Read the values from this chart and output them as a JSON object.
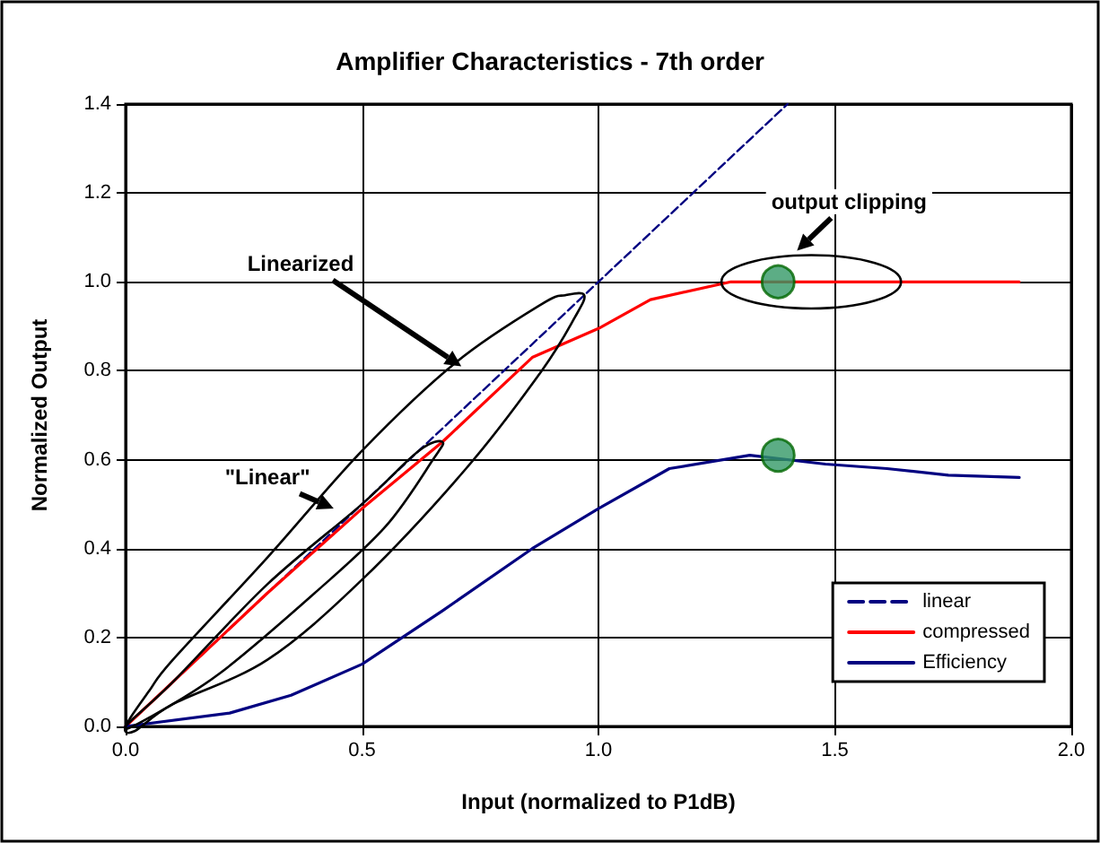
{
  "chart_data": {
    "type": "line",
    "title": "Amplifier Characteristics - 7th order",
    "xlabel": "Input (normalized to P1dB)",
    "ylabel": "Normalized Output",
    "xlim": [
      0,
      2
    ],
    "xticks": [
      {
        "value": 0,
        "label": "0.0"
      },
      {
        "value": 0.5,
        "label": "0.5"
      },
      {
        "value": 1,
        "label": "1.0"
      },
      {
        "value": 1.5,
        "label": "1.5"
      },
      {
        "value": 2,
        "label": "2.0"
      }
    ],
    "ylim": [
      0,
      1.4
    ],
    "yticks": [
      {
        "value": 0,
        "label": "0.0"
      },
      {
        "value": 0.2,
        "label": "0.2"
      },
      {
        "value": 0.4,
        "label": "0.4"
      },
      {
        "value": 0.6,
        "label": "0.6"
      },
      {
        "value": 0.8,
        "label": "0.8"
      },
      {
        "value": 1,
        "label": "1.0"
      },
      {
        "value": 1.2,
        "label": "1.2"
      },
      {
        "value": 1.4,
        "label": "1.4"
      }
    ],
    "grid": true,
    "legend": "bottom right",
    "marker": "none",
    "series": [
      {
        "name": "linear",
        "color": "#000080",
        "line_style": "dashed",
        "x": [
          0,
          1.4
        ],
        "values": [
          0,
          1.4
        ]
      },
      {
        "name": "compressed",
        "color": "#ff0000",
        "x": [
          0,
          0.1,
          0.3,
          0.5,
          0.67,
          0.86,
          1.0,
          1.11,
          1.28,
          1.89
        ],
        "values": [
          0,
          0.1,
          0.3,
          0.49,
          0.64,
          0.83,
          0.895,
          0.96,
          1.0,
          1.0
        ]
      },
      {
        "name": "Efficiency",
        "color": "#000080",
        "x": [
          0,
          0.22,
          0.35,
          0.5,
          0.67,
          0.86,
          1.0,
          1.15,
          1.32,
          1.48,
          1.61,
          1.74,
          1.89
        ],
        "values": [
          0,
          0.03,
          0.07,
          0.14,
          0.26,
          0.4,
          0.49,
          0.58,
          0.61,
          0.59,
          0.58,
          0.565,
          0.56
        ]
      },
      {
        "type": "scatter",
        "marker": "circle",
        "color": "#339966",
        "x": [
          1.38,
          1.38
        ],
        "values": [
          1.0,
          0.61
        ]
      }
    ],
    "annotations": [
      "Linearized",
      "\"Linear\"",
      "output clipping"
    ]
  }
}
